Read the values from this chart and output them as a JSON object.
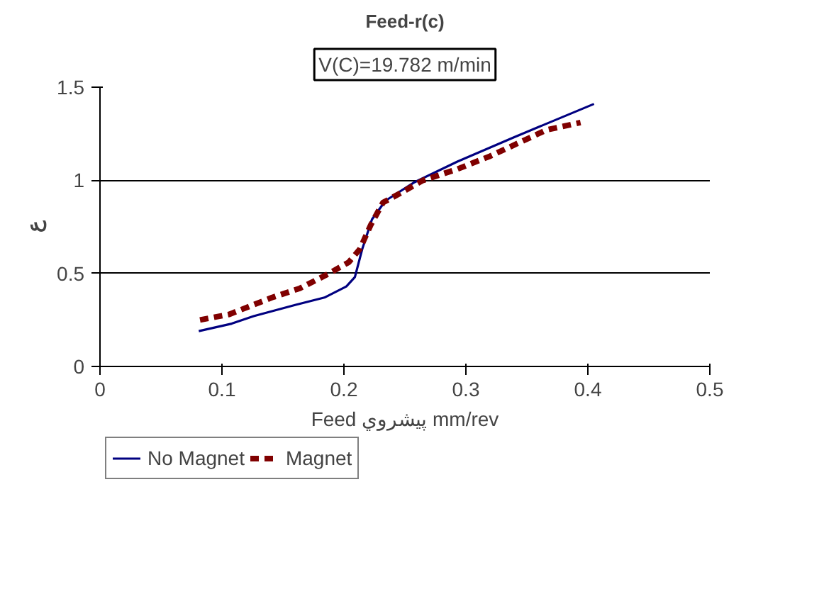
{
  "chart_data": {
    "type": "line",
    "title": "Feed-r(c)",
    "annotations": [
      "V(C)=19.782 m/min"
    ],
    "xlabel": "Feed پيشروي mm/rev",
    "ylabel": "ع",
    "xlim": [
      0,
      0.5
    ],
    "xticks": [
      0,
      0.1,
      0.2,
      0.3,
      0.4,
      0.5
    ],
    "ylim": [
      0,
      1.5
    ],
    "yticks": [
      0,
      0.5,
      1,
      1.5
    ],
    "grid": "y",
    "legend": "bottom",
    "series": [
      {
        "name": "No Magnet",
        "color": "#000080",
        "line_style": "solid",
        "x": [
          0.081,
          0.108,
          0.126,
          0.16,
          0.184,
          0.202,
          0.209,
          0.215,
          0.223,
          0.234,
          0.258,
          0.293,
          0.339,
          0.405
        ],
        "values": [
          0.19,
          0.23,
          0.27,
          0.33,
          0.37,
          0.43,
          0.48,
          0.63,
          0.79,
          0.89,
          0.99,
          1.1,
          1.23,
          1.41
        ]
      },
      {
        "name": "Magnet",
        "color": "#800000",
        "line_style": "dashed",
        "x": [
          0.082,
          0.106,
          0.141,
          0.164,
          0.188,
          0.204,
          0.213,
          0.222,
          0.232,
          0.246,
          0.265,
          0.293,
          0.32,
          0.366,
          0.394
        ],
        "values": [
          0.25,
          0.28,
          0.37,
          0.42,
          0.5,
          0.56,
          0.63,
          0.76,
          0.88,
          0.93,
          1.0,
          1.06,
          1.13,
          1.27,
          1.31
        ]
      }
    ]
  }
}
